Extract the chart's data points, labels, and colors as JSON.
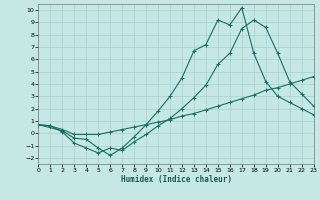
{
  "xlabel": "Humidex (Indice chaleur)",
  "bg_color": "#c5e8e5",
  "grid_color": "#a8d0cc",
  "line_color": "#1a6e64",
  "xlim": [
    0,
    23
  ],
  "ylim": [
    -2.5,
    10.5
  ],
  "xticks": [
    0,
    1,
    2,
    3,
    4,
    5,
    6,
    7,
    8,
    9,
    10,
    11,
    12,
    13,
    14,
    15,
    16,
    17,
    18,
    19,
    20,
    21,
    22,
    23
  ],
  "yticks": [
    -2,
    -1,
    0,
    1,
    2,
    3,
    4,
    5,
    6,
    7,
    8,
    9,
    10
  ],
  "series1_x": [
    0,
    1,
    2,
    3,
    4,
    5,
    6,
    7,
    8,
    9,
    10,
    11,
    12,
    13,
    14,
    15,
    16,
    17,
    18,
    19,
    20,
    21,
    22,
    23
  ],
  "series1_y": [
    0.7,
    0.6,
    0.3,
    -0.1,
    -0.1,
    -0.1,
    0.1,
    0.3,
    0.5,
    0.7,
    0.9,
    1.1,
    1.4,
    1.6,
    1.9,
    2.2,
    2.5,
    2.8,
    3.1,
    3.5,
    3.7,
    4.0,
    4.3,
    4.6
  ],
  "series2_x": [
    0,
    1,
    2,
    3,
    4,
    5,
    6,
    7,
    8,
    9,
    10,
    11,
    12,
    13,
    14,
    15,
    16,
    17,
    18,
    19,
    20,
    21,
    22,
    23
  ],
  "series2_y": [
    0.7,
    0.6,
    0.1,
    -0.8,
    -1.2,
    -1.6,
    -1.2,
    -1.4,
    -0.7,
    -0.1,
    0.6,
    1.2,
    2.0,
    2.9,
    3.9,
    5.6,
    6.5,
    8.5,
    9.2,
    8.6,
    6.5,
    4.2,
    3.2,
    2.2
  ],
  "series3_x": [
    0,
    2,
    3,
    4,
    5,
    6,
    7,
    8,
    9,
    10,
    11,
    12,
    13,
    14,
    15,
    16,
    17,
    18,
    19,
    20,
    21,
    22,
    23
  ],
  "series3_y": [
    0.7,
    0.2,
    -0.4,
    -0.5,
    -1.2,
    -1.8,
    -1.2,
    -0.3,
    0.7,
    1.8,
    3.0,
    4.5,
    6.7,
    7.2,
    9.2,
    8.8,
    10.2,
    6.5,
    4.2,
    3.0,
    2.5,
    2.0,
    1.5
  ]
}
